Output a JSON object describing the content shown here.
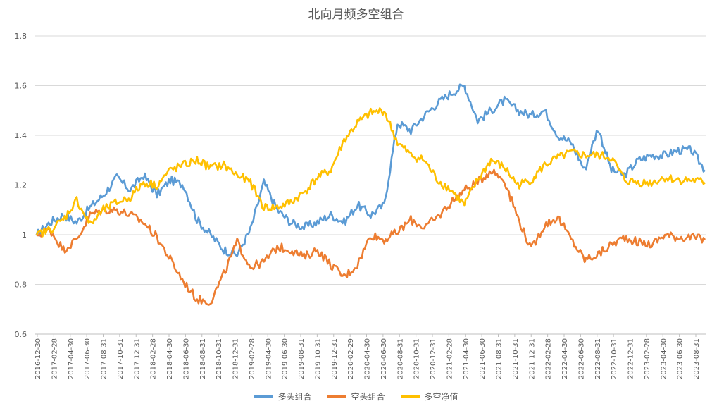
{
  "chart_data": {
    "type": "line",
    "title": "北向月频多空组合",
    "xlabel": "",
    "ylabel": "",
    "ylim": [
      0.6,
      1.8
    ],
    "yticks": [
      "0.6",
      "0.8",
      "1",
      "1.2",
      "1.4",
      "1.6",
      "1.8"
    ],
    "grid": true,
    "legend": "bottom",
    "x_tick_labels": [
      "2016-12-30",
      "2017-02-28",
      "2017-04-30",
      "2017-06-30",
      "2017-08-31",
      "2017-10-31",
      "2017-12-31",
      "2018-02-28",
      "2018-04-30",
      "2018-06-30",
      "2018-08-31",
      "2018-10-31",
      "2018-12-31",
      "2019-02-28",
      "2019-04-30",
      "2019-06-30",
      "2019-08-31",
      "2019-10-31",
      "2019-12-31",
      "2020-02-29",
      "2020-04-30",
      "2020-06-30",
      "2020-08-31",
      "2020-10-31",
      "2020-12-31",
      "2021-02-28",
      "2021-04-30",
      "2021-06-30",
      "2021-08-31",
      "2021-10-31",
      "2021-12-31",
      "2022-02-28",
      "2022-04-30",
      "2022-06-30",
      "2022-08-31",
      "2022-10-31",
      "2022-12-31",
      "2023-02-28",
      "2023-04-30",
      "2023-06-30",
      "2023-08-31"
    ],
    "series": [
      {
        "name": "多头组合",
        "color": "#5B9BD5",
        "values": [
          1.0,
          1.05,
          1.08,
          1.05,
          1.11,
          1.16,
          1.23,
          1.18,
          1.24,
          1.16,
          1.22,
          1.2,
          1.06,
          1.0,
          0.94,
          0.92,
          1.02,
          1.21,
          1.1,
          1.05,
          1.03,
          1.05,
          1.08,
          1.05,
          1.12,
          1.08,
          1.12,
          1.45,
          1.42,
          1.48,
          1.53,
          1.57,
          1.6,
          1.46,
          1.5,
          1.54,
          1.5,
          1.48,
          1.5,
          1.4,
          1.37,
          1.26,
          1.43,
          1.26,
          1.24,
          1.3,
          1.32,
          1.32,
          1.34,
          1.34,
          1.26
        ]
      },
      {
        "name": "空头组合",
        "color": "#ED7D31",
        "values": [
          1.0,
          1.02,
          0.94,
          0.98,
          1.08,
          1.1,
          1.1,
          1.08,
          1.05,
          0.99,
          0.9,
          0.81,
          0.74,
          0.73,
          0.84,
          0.97,
          0.87,
          0.89,
          0.95,
          0.94,
          0.91,
          0.94,
          0.88,
          0.83,
          0.88,
          1.0,
          0.98,
          1.01,
          1.06,
          1.03,
          1.07,
          1.13,
          1.18,
          1.21,
          1.26,
          1.22,
          1.07,
          0.94,
          1.04,
          1.07,
          0.98,
          0.9,
          0.92,
          0.96,
          0.99,
          0.97,
          0.96,
          1.0,
          0.99,
          0.99,
          0.98
        ]
      },
      {
        "name": "多空净值",
        "color": "#FFC000",
        "values": [
          1.0,
          1.02,
          1.06,
          1.14,
          1.04,
          1.1,
          1.13,
          1.15,
          1.21,
          1.2,
          1.26,
          1.28,
          1.3,
          1.27,
          1.28,
          1.24,
          1.21,
          1.11,
          1.11,
          1.13,
          1.17,
          1.23,
          1.26,
          1.38,
          1.45,
          1.49,
          1.5,
          1.37,
          1.32,
          1.3,
          1.22,
          1.18,
          1.12,
          1.22,
          1.3,
          1.27,
          1.2,
          1.22,
          1.28,
          1.31,
          1.33,
          1.32,
          1.32,
          1.31,
          1.22,
          1.21,
          1.21,
          1.23,
          1.22,
          1.22,
          1.21
        ]
      }
    ]
  }
}
